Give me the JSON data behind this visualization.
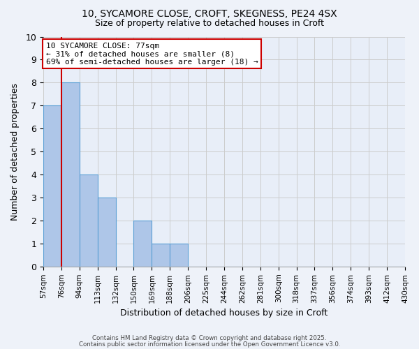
{
  "title1": "10, SYCAMORE CLOSE, CROFT, SKEGNESS, PE24 4SX",
  "title2": "Size of property relative to detached houses in Croft",
  "xlabel": "Distribution of detached houses by size in Croft",
  "ylabel": "Number of detached properties",
  "bin_labels": [
    "57sqm",
    "76sqm",
    "94sqm",
    "113sqm",
    "132sqm",
    "150sqm",
    "169sqm",
    "188sqm",
    "206sqm",
    "225sqm",
    "244sqm",
    "262sqm",
    "281sqm",
    "300sqm",
    "318sqm",
    "337sqm",
    "356sqm",
    "374sqm",
    "393sqm",
    "412sqm",
    "430sqm"
  ],
  "bar_values": [
    7,
    8,
    4,
    3,
    0,
    2,
    1,
    1,
    0,
    0,
    0,
    0,
    0,
    0,
    0,
    0,
    0,
    0,
    0,
    0
  ],
  "bar_color": "#aec6e8",
  "bar_edge_color": "#5a9fd4",
  "grid_color": "#cccccc",
  "annotation_box_color": "#cc0000",
  "vline_color": "#cc0000",
  "vline_x": 1,
  "annotation_text": "10 SYCAMORE CLOSE: 77sqm\n← 31% of detached houses are smaller (8)\n69% of semi-detached houses are larger (18) →",
  "annotation_fontsize": 8.0,
  "footer_text1": "Contains HM Land Registry data © Crown copyright and database right 2025.",
  "footer_text2": "Contains public sector information licensed under the Open Government Licence v3.0.",
  "ylim": [
    0,
    10
  ],
  "yticks": [
    0,
    1,
    2,
    3,
    4,
    5,
    6,
    7,
    8,
    9,
    10
  ],
  "background_color": "#eef2f9",
  "plot_bg_color": "#e8eef8"
}
